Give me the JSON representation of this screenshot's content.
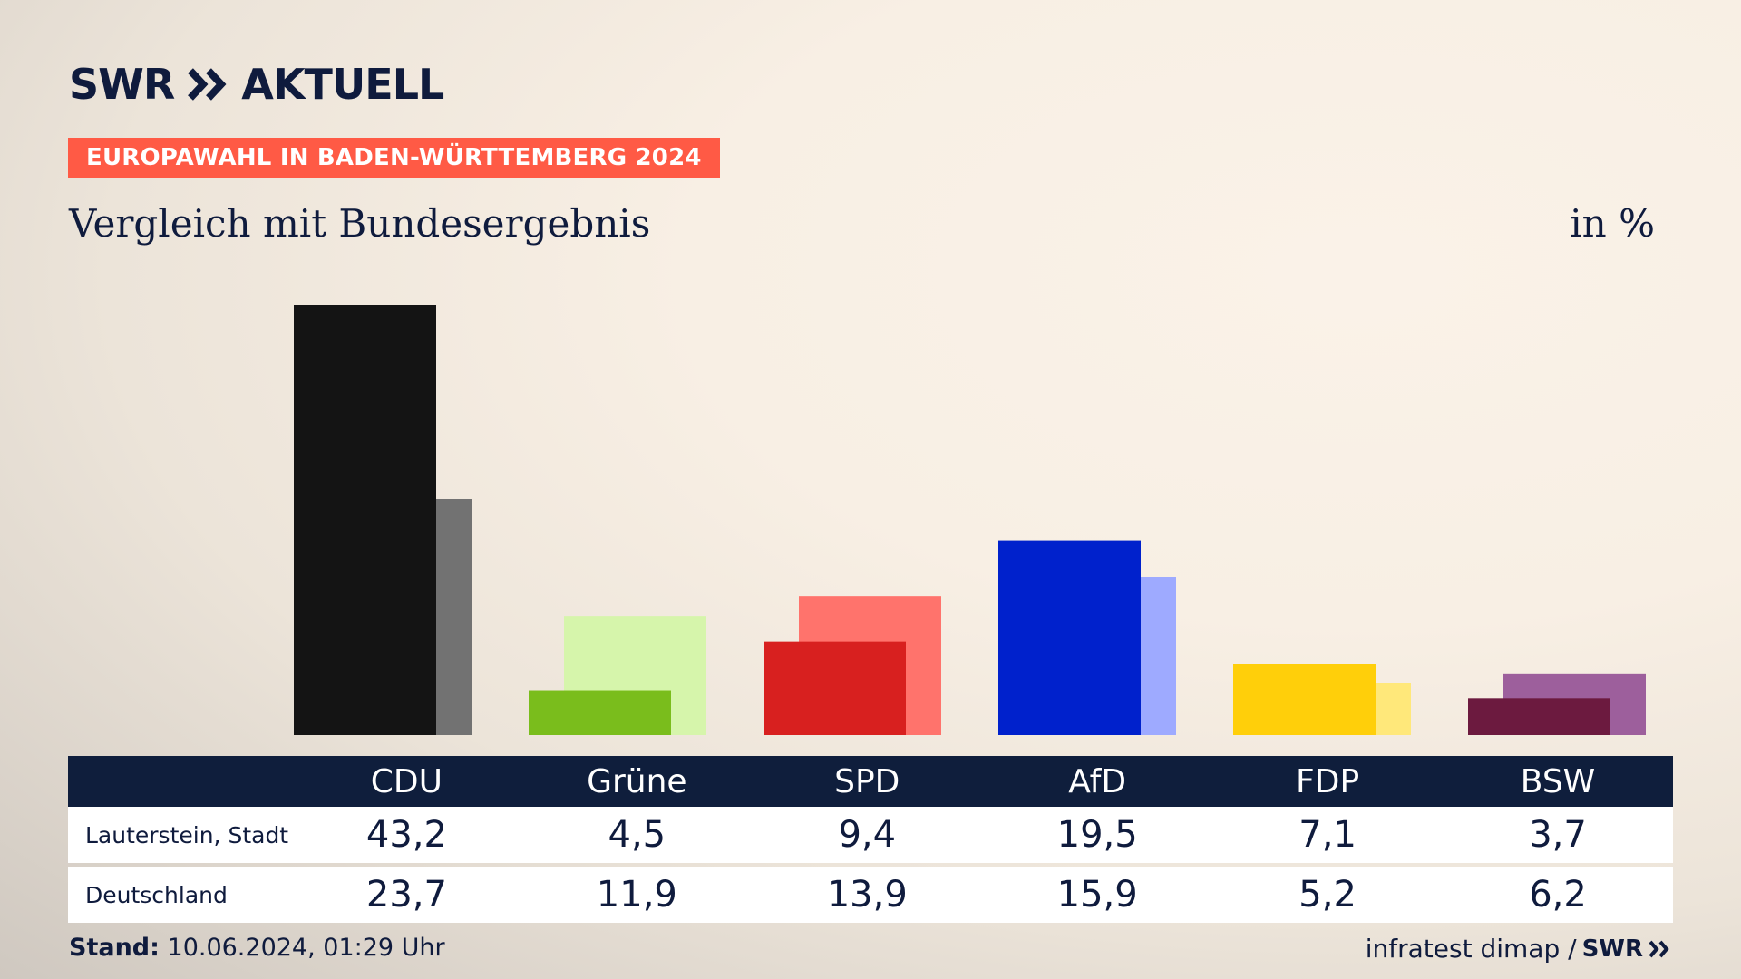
{
  "brand": {
    "logo_text": "SWR ≫ AKTUELL",
    "logo_left": "SWR",
    "logo_right": "AKTUELL"
  },
  "badge": "EUROPAWAHL IN BADEN-WÜRTTEMBERG 2024",
  "title": "Vergleich mit Bundesergebnis",
  "unit": "in %",
  "table": {
    "rows": [
      {
        "label": "Lauterstein, Stadt",
        "values": [
          "43,2",
          "4,5",
          "9,4",
          "19,5",
          "7,1",
          "3,7"
        ]
      },
      {
        "label": "Deutschland",
        "values": [
          "23,7",
          "11,9",
          "13,9",
          "15,9",
          "5,2",
          "6,2"
        ]
      }
    ]
  },
  "footer": {
    "stand_label": "Stand:",
    "stand_value": "10.06.2024, 01:29 Uhr",
    "source": "infratest dimap /",
    "source_brand": "SWR"
  },
  "chart_data": {
    "type": "bar",
    "categories": [
      "CDU",
      "Grüne",
      "SPD",
      "AfD",
      "FDP",
      "BSW"
    ],
    "series": [
      {
        "name": "Lauterstein, Stadt",
        "values": [
          43.2,
          4.5,
          9.4,
          19.5,
          7.1,
          3.7
        ]
      },
      {
        "name": "Deutschland",
        "values": [
          23.7,
          11.9,
          13.9,
          15.9,
          5.2,
          6.2
        ]
      }
    ],
    "colors_primary": [
      "#141414",
      "#7abd1c",
      "#d8201f",
      "#0021cc",
      "#ffcf0a",
      "#6c1a3f"
    ],
    "colors_secondary": [
      "#727272",
      "#d6f5ab",
      "#ff736c",
      "#9eaaff",
      "#ffe87a",
      "#9d5f9c"
    ],
    "ylim": [
      0,
      43.2
    ],
    "grid": false,
    "legend": "table-below"
  }
}
